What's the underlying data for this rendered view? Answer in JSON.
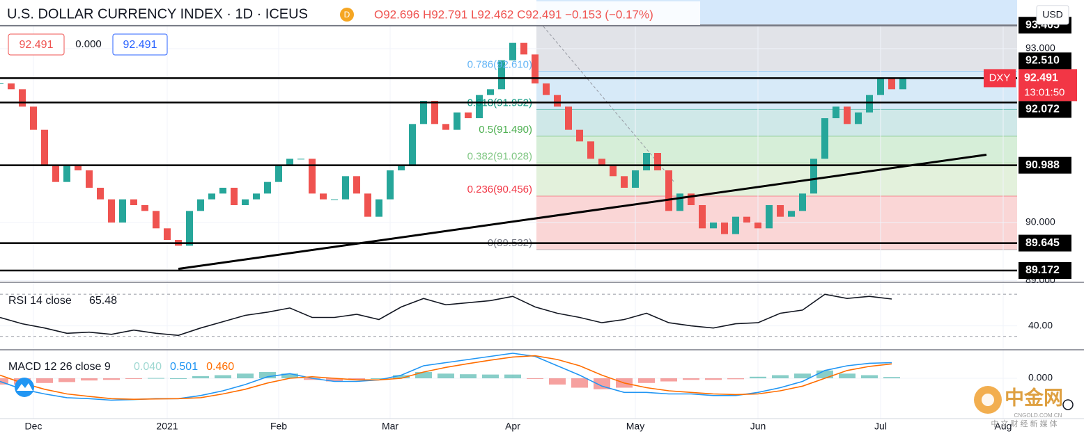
{
  "header": {
    "title": "U.S. DOLLAR CURRENCY INDEX · 1D · ICEUS",
    "ohlc": "O92.696 H92.791 L92.462 C92.491 −0.153 (−0.17%)",
    "boxes": [
      "92.491",
      "0.000",
      "92.491"
    ],
    "currency": "USD"
  },
  "watermark": {
    "name": "中金网",
    "domain": "CNGOLD.COM.CN",
    "tagline": "中 文 财 经 新 媒 体"
  },
  "chart_data": [
    {
      "type": "candlestick",
      "symbol": "DXY",
      "x": [
        0,
        2,
        4,
        6,
        8,
        10,
        12,
        14,
        16,
        18,
        20,
        22,
        24,
        26,
        28,
        30,
        32,
        34,
        36,
        38,
        40,
        42,
        44,
        46,
        48,
        50,
        52,
        54,
        56,
        58,
        60,
        62,
        64,
        66,
        68,
        70,
        72,
        74,
        76,
        78,
        80,
        82,
        84,
        86,
        88,
        90,
        92,
        94,
        96,
        98,
        100,
        102,
        104,
        106,
        108,
        110,
        112,
        114,
        116,
        118,
        120,
        122,
        124,
        126,
        128,
        130,
        132,
        134,
        136,
        138,
        140,
        142,
        144,
        146,
        148,
        150,
        152,
        154,
        156,
        158,
        160,
        162
      ],
      "close": [
        92.4,
        92.3,
        92.0,
        91.6,
        91.0,
        90.7,
        91.0,
        90.9,
        90.6,
        90.4,
        90.0,
        90.4,
        90.3,
        90.2,
        89.9,
        89.7,
        89.6,
        90.2,
        90.4,
        90.5,
        90.6,
        90.3,
        90.4,
        90.5,
        90.7,
        91.0,
        91.1,
        91.1,
        90.5,
        90.4,
        90.4,
        90.8,
        90.5,
        90.1,
        90.4,
        90.9,
        91.0,
        91.7,
        92.1,
        91.7,
        91.6,
        91.9,
        91.8,
        92.2,
        92.3,
        92.8,
        93.1,
        92.9,
        92.4,
        92.2,
        92.0,
        91.6,
        91.4,
        91.1,
        91.0,
        90.8,
        90.6,
        90.9,
        91.2,
        90.9,
        90.2,
        90.5,
        90.3,
        89.9,
        90.0,
        89.8,
        90.1,
        90.0,
        89.9,
        90.3,
        90.1,
        90.2,
        90.5,
        91.1,
        91.8,
        92.0,
        91.7,
        91.9,
        92.2,
        92.5,
        92.3,
        92.491
      ],
      "up_color": "#26a69a",
      "down_color": "#ef5350",
      "xlim": [
        0,
        182.5
      ],
      "xticks": [
        {
          "value": 6,
          "label": "Dec"
        },
        {
          "value": 30,
          "label": "2021"
        },
        {
          "value": 50,
          "label": "Feb"
        },
        {
          "value": 70,
          "label": "Mar"
        },
        {
          "value": 92,
          "label": "Apr"
        },
        {
          "value": 114,
          "label": "May"
        },
        {
          "value": 136,
          "label": "Jun"
        },
        {
          "value": 158,
          "label": "Jul"
        },
        {
          "value": 180,
          "label": "Aug"
        }
      ],
      "ylim": [
        88.98,
        93.84
      ],
      "yticks": [
        {
          "value": 93,
          "label": "93.000"
        },
        {
          "value": 90,
          "label": "90.000"
        },
        {
          "value": 89,
          "label": "89.000"
        }
      ],
      "hlines": [
        {
          "value": 93.405,
          "color": "#9598a1"
        },
        {
          "value": 92.491,
          "color": "#000000"
        },
        {
          "value": 92.072,
          "color": "#000000"
        },
        {
          "value": 90.988,
          "color": "#000000"
        },
        {
          "value": 89.645,
          "color": "#000000"
        },
        {
          "value": 89.172,
          "color": "#000000"
        }
      ],
      "price_tags": [
        {
          "value": 93.405,
          "label": "93.405"
        },
        {
          "value": 92.51,
          "label": "92.510"
        },
        {
          "value": 92.072,
          "label": "92.072"
        },
        {
          "value": 90.988,
          "label": "90.988"
        },
        {
          "value": 89.645,
          "label": "89.645"
        },
        {
          "value": 89.172,
          "label": "89.172"
        }
      ],
      "current": {
        "value": 92.491,
        "label": "92.491",
        "countdown": "13:01:50",
        "color": "#f23645"
      },
      "fib": {
        "x": [
          96.25,
          182.5
        ],
        "levels": [
          {
            "value": 89.532,
            "label": "0(89.532)",
            "color": "#787b86",
            "fill": "#fad6d6"
          },
          {
            "value": 90.456,
            "label": "0.236(90.456)",
            "color": "#f23645",
            "fill": "#e3f1dc"
          },
          {
            "value": 91.028,
            "label": "0.382(91.028)",
            "color": "#81c784",
            "fill": "#d6eed8"
          },
          {
            "value": 91.49,
            "label": "0.5(91.490)",
            "color": "#4caf50",
            "fill": "#cfe8e8"
          },
          {
            "value": 91.952,
            "label": "0.618(91.952)",
            "color": "#089981",
            "fill": "#d7eaf8"
          },
          {
            "value": 92.61,
            "label": "0.786(92.610)",
            "color": "#64b5f6",
            "fill": "#e1e3e8"
          },
          {
            "value": 93.405,
            "color": "#787b86",
            "fill": "#d5e8fb"
          }
        ]
      },
      "trendline": {
        "x": [
          32,
          177
        ],
        "y": [
          89.2,
          91.17
        ],
        "color": "#000000"
      }
    },
    {
      "type": "line",
      "title": "RSI 14 close",
      "x": [
        0,
        4,
        8,
        12,
        16,
        20,
        24,
        28,
        32,
        36,
        40,
        44,
        48,
        52,
        56,
        60,
        64,
        68,
        72,
        76,
        80,
        84,
        88,
        92,
        96,
        100,
        104,
        108,
        112,
        116,
        120,
        124,
        128,
        132,
        136,
        140,
        144,
        148,
        152,
        156,
        160
      ],
      "series": [
        {
          "color": "#131722",
          "values": [
            48,
            42,
            38,
            33,
            34,
            32,
            36,
            33,
            31,
            38,
            44,
            50,
            53,
            57,
            48,
            48,
            51,
            46,
            58,
            66,
            60,
            62,
            64,
            68,
            58,
            52,
            48,
            43,
            46,
            52,
            43,
            40,
            38,
            42,
            43,
            52,
            55,
            70,
            66,
            68,
            65.48
          ]
        }
      ],
      "ylim": [
        18,
        80
      ],
      "yticks": [
        {
          "value": 40,
          "label": "40.00"
        }
      ],
      "levels": [
        30,
        70
      ]
    },
    {
      "type": "macd",
      "title": "MACD 12 26 close 9",
      "x": [
        0,
        4,
        8,
        12,
        16,
        20,
        24,
        28,
        32,
        36,
        40,
        44,
        48,
        52,
        56,
        60,
        64,
        68,
        72,
        76,
        80,
        84,
        88,
        92,
        96,
        100,
        104,
        108,
        112,
        116,
        120,
        124,
        128,
        132,
        136,
        140,
        144,
        148,
        152,
        156,
        160
      ],
      "series": [
        {
          "kind": "bar",
          "color": "#26a69a",
          "neg_color": "#ef5350",
          "last_label": "0.040",
          "values": [
            -0.2,
            -0.2,
            -0.15,
            -0.12,
            -0.07,
            -0.05,
            -0.01,
            0.01,
            0,
            0.07,
            0.1,
            0.15,
            0.2,
            0.15,
            -0.05,
            -0.1,
            -0.05,
            0,
            0.1,
            0.2,
            0.15,
            0.13,
            0.12,
            0.12,
            -0.02,
            -0.2,
            -0.3,
            -0.35,
            -0.3,
            -0.15,
            -0.1,
            -0.05,
            -0.05,
            -0.03,
            0.05,
            0.1,
            0.15,
            0.25,
            0.15,
            0.1,
            0.04
          ]
        },
        {
          "kind": "line",
          "color": "#2196f3",
          "last_label": "0.501",
          "values": [
            -0.1,
            -0.35,
            -0.5,
            -0.62,
            -0.65,
            -0.7,
            -0.68,
            -0.65,
            -0.65,
            -0.55,
            -0.4,
            -0.2,
            0.05,
            0.15,
            0,
            -0.1,
            -0.1,
            -0.05,
            0.1,
            0.4,
            0.5,
            0.6,
            0.7,
            0.8,
            0.7,
            0.4,
            0.1,
            -0.25,
            -0.45,
            -0.45,
            -0.5,
            -0.5,
            -0.55,
            -0.55,
            -0.45,
            -0.3,
            -0.1,
            0.25,
            0.4,
            0.48,
            0.501
          ]
        },
        {
          "kind": "line",
          "color": "#ff6d00",
          "last_label": "0.460",
          "values": [
            0.1,
            -0.15,
            -0.35,
            -0.5,
            -0.58,
            -0.65,
            -0.67,
            -0.66,
            -0.65,
            -0.62,
            -0.5,
            -0.35,
            -0.15,
            0,
            0.05,
            0,
            -0.05,
            -0.05,
            0,
            0.2,
            0.35,
            0.47,
            0.58,
            0.68,
            0.72,
            0.6,
            0.4,
            0.1,
            -0.15,
            -0.3,
            -0.4,
            -0.45,
            -0.5,
            -0.52,
            -0.5,
            -0.4,
            -0.25,
            0,
            0.25,
            0.38,
            0.46
          ]
        }
      ],
      "ylim": [
        -1.244,
        0.867
      ],
      "yticks": [
        {
          "value": 0,
          "label": "0.000"
        }
      ]
    }
  ]
}
